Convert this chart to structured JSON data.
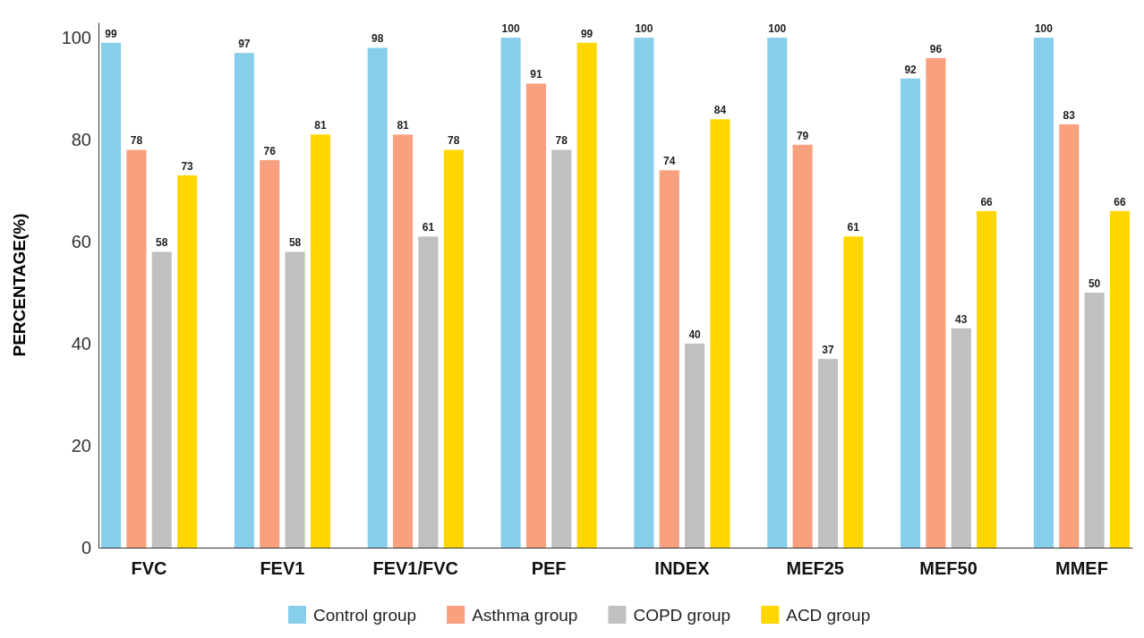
{
  "chart_data": {
    "type": "bar",
    "ylabel": "PERCENTAGE(%)",
    "categories": [
      "FVC",
      "FEV1",
      "FEV1/FVC",
      "PEF",
      "INDEX",
      "MEF25",
      "MEF50",
      "MMEF"
    ],
    "series": [
      {
        "name": "Control group",
        "color": "#87ceeb",
        "values": [
          99,
          97,
          98,
          100,
          100,
          100,
          92,
          100
        ]
      },
      {
        "name": "Asthma group",
        "color": "#f9a07f",
        "values": [
          78,
          76,
          81,
          91,
          74,
          79,
          96,
          83
        ]
      },
      {
        "name": "COPD group",
        "color": "#c0c0c0",
        "values": [
          58,
          58,
          61,
          78,
          40,
          37,
          43,
          50
        ]
      },
      {
        "name": "ACD group",
        "color": "#ffd700",
        "values": [
          73,
          81,
          78,
          99,
          84,
          61,
          66,
          66
        ]
      }
    ],
    "ylim": [
      0,
      103
    ],
    "yticks": [
      0,
      20,
      40,
      60,
      80,
      100
    ],
    "grid": false,
    "legend": "bottom",
    "data_labels": true
  }
}
